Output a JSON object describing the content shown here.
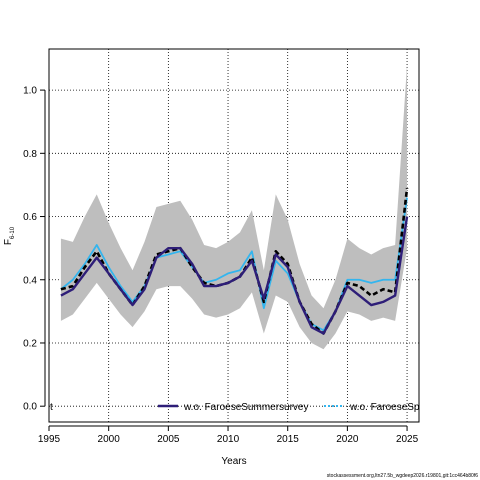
{
  "chart_data": {
    "type": "line",
    "xlabel": "Years",
    "ylabel_main": "F",
    "ylabel_sub": "6-10",
    "xlim": [
      1995,
      2026
    ],
    "ylim": [
      -0.05,
      1.13
    ],
    "xticks": [
      1995,
      2000,
      2005,
      2010,
      2015,
      2020,
      2025
    ],
    "yticks": [
      0.0,
      0.2,
      0.4,
      0.6,
      0.8,
      1.0
    ],
    "ytick_labels": [
      "0.0",
      "0.2",
      "0.4",
      "0.6",
      "0.8",
      "1.0"
    ],
    "grid": true,
    "legend_placement": "bottom",
    "x": [
      1996,
      1997,
      1998,
      1999,
      2000,
      2001,
      2002,
      2003,
      2004,
      2005,
      2006,
      2007,
      2008,
      2009,
      2010,
      2011,
      2012,
      2013,
      2014,
      2015,
      2016,
      2017,
      2018,
      2019,
      2020,
      2021,
      2022,
      2023,
      2024,
      2025
    ],
    "band": {
      "color": "#bebebe",
      "lower": [
        0.27,
        0.29,
        0.34,
        0.39,
        0.34,
        0.29,
        0.25,
        0.3,
        0.37,
        0.38,
        0.38,
        0.34,
        0.29,
        0.28,
        0.29,
        0.31,
        0.36,
        0.23,
        0.35,
        0.33,
        0.25,
        0.2,
        0.18,
        0.23,
        0.3,
        0.29,
        0.27,
        0.28,
        0.27,
        0.5
      ],
      "upper": [
        0.53,
        0.52,
        0.6,
        0.67,
        0.58,
        0.5,
        0.43,
        0.52,
        0.63,
        0.64,
        0.65,
        0.59,
        0.51,
        0.5,
        0.52,
        0.55,
        0.62,
        0.43,
        0.67,
        0.59,
        0.45,
        0.35,
        0.31,
        0.4,
        0.53,
        0.5,
        0.48,
        0.5,
        0.51,
        1.08
      ]
    },
    "series": [
      {
        "id": "base",
        "style": "black-dashed",
        "color": "#000000",
        "values": [
          0.37,
          0.38,
          0.44,
          0.49,
          0.42,
          0.37,
          0.32,
          0.38,
          0.48,
          0.49,
          0.5,
          0.44,
          0.39,
          0.38,
          0.39,
          0.41,
          0.47,
          0.33,
          0.49,
          0.45,
          0.33,
          0.26,
          0.23,
          0.3,
          0.39,
          0.38,
          0.35,
          0.37,
          0.36,
          0.69
        ]
      },
      {
        "id": "wo-summer",
        "name": "w.o. FaroeseSummersurvey",
        "style": "solid",
        "color": "#2e1e78",
        "values": [
          0.35,
          0.37,
          0.42,
          0.47,
          0.42,
          0.37,
          0.32,
          0.37,
          0.47,
          0.5,
          0.5,
          0.45,
          0.38,
          0.38,
          0.39,
          0.41,
          0.46,
          0.34,
          0.48,
          0.44,
          0.33,
          0.25,
          0.23,
          0.3,
          0.38,
          0.35,
          0.32,
          0.33,
          0.35,
          0.6
        ]
      },
      {
        "id": "wo-spring",
        "name": "w.o. FaroeseSp",
        "style": "solid",
        "color": "#33b5ee",
        "values": [
          0.37,
          0.4,
          0.45,
          0.51,
          0.44,
          0.38,
          0.33,
          0.38,
          0.47,
          0.48,
          0.49,
          0.44,
          0.39,
          0.4,
          0.42,
          0.43,
          0.49,
          0.31,
          0.46,
          0.42,
          0.33,
          0.26,
          0.24,
          0.3,
          0.4,
          0.4,
          0.39,
          0.4,
          0.4,
          0.66
        ]
      }
    ],
    "legend_entries": [
      {
        "label": "t",
        "swatch": "none"
      },
      {
        "label": "w.o. FaroeseSummersurvey",
        "swatch": "solid-navy"
      },
      {
        "label": "w.o. FaroeseSp",
        "swatch": "dotted-cyan"
      }
    ]
  },
  "footer_text": "stockassessment.org,ltn27.5b_wgdeep2026.r19801,git:1cc464b80f6"
}
